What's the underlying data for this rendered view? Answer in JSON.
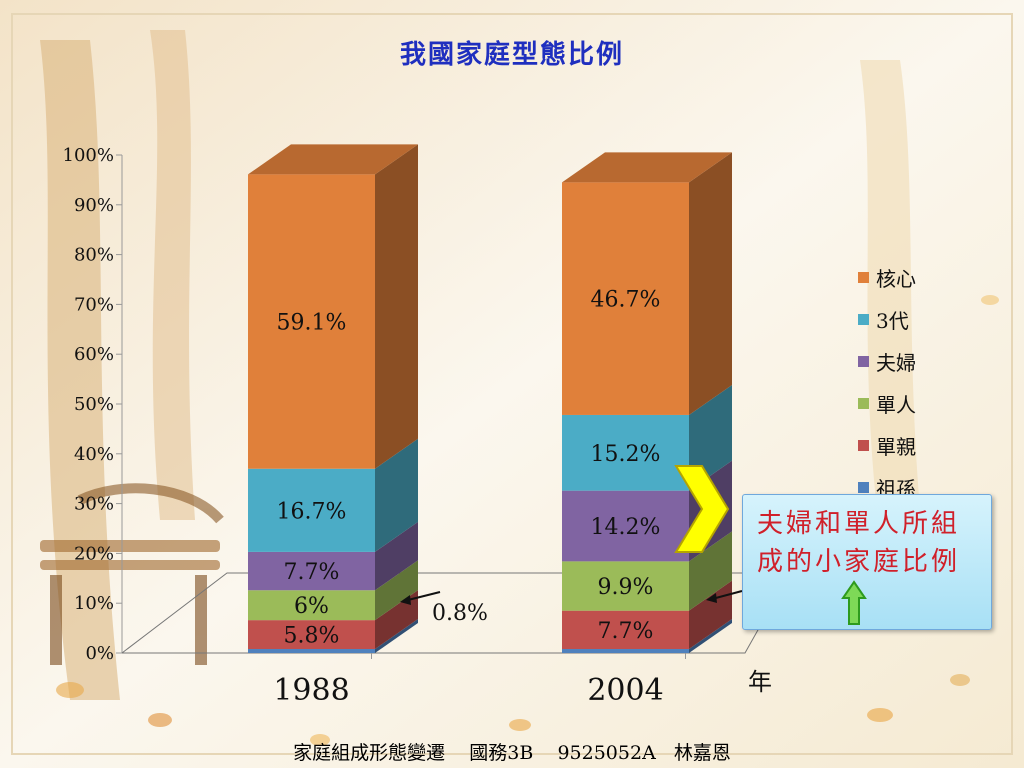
{
  "title": "我國家庭型態比例",
  "chart_data": {
    "type": "bar",
    "stacked": true,
    "three_d": true,
    "categories": [
      "1988",
      "2004"
    ],
    "series": [
      {
        "name": "祖孫",
        "values": [
          0.8,
          0.8
        ],
        "color": "#4f81bd",
        "labels": [
          "",
          ""
        ]
      },
      {
        "name": "單親",
        "values": [
          5.8,
          7.7
        ],
        "color": "#c0504d",
        "labels": [
          "5.8%",
          "7.7%"
        ]
      },
      {
        "name": "單人",
        "values": [
          6.0,
          9.9
        ],
        "color": "#9bbb59",
        "labels": [
          "6%",
          "9.9%"
        ]
      },
      {
        "name": "夫婦",
        "values": [
          7.7,
          14.2
        ],
        "color": "#8064a2",
        "labels": [
          "7.7%",
          "14.2%"
        ]
      },
      {
        "name": "3代",
        "values": [
          16.7,
          15.2
        ],
        "color": "#4bacc6",
        "labels": [
          "16.7%",
          "15.2%"
        ]
      },
      {
        "name": "核心",
        "values": [
          59.1,
          46.7
        ],
        "color": "#e0803a",
        "labels": [
          "59.1%",
          "46.7%"
        ]
      }
    ],
    "ylim": [
      0,
      100
    ],
    "yticks": [
      "0%",
      "10%",
      "20%",
      "30%",
      "40%",
      "50%",
      "60%",
      "70%",
      "80%",
      "90%",
      "100%"
    ],
    "xlabel": "年",
    "legend_position": "right",
    "annotations": [
      "0.8%"
    ]
  },
  "legend": [
    "核心",
    "3代",
    "夫婦",
    "單人",
    "單親",
    "祖孫"
  ],
  "callout": {
    "text": "夫婦和單人所組成的小家庭比例",
    "background": "#bfe9f7",
    "text_color": "#d0202a"
  },
  "footer": "家庭組成形態變遷    國務3B    9525052A   林嘉恩"
}
